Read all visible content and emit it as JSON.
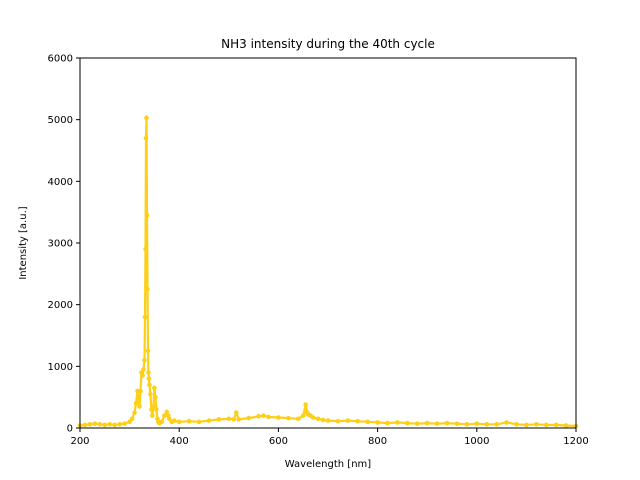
{
  "chart_data": {
    "type": "line",
    "title": "NH3 intensity during the 40th cycle",
    "xlabel": "Wavelength [nm]",
    "ylabel": "Intensity [a.u.]",
    "xlim": [
      200,
      1200
    ],
    "ylim": [
      0,
      6000
    ],
    "xticks": [
      200,
      400,
      600,
      800,
      1000,
      1200
    ],
    "yticks": [
      0,
      1000,
      2000,
      3000,
      4000,
      5000,
      6000
    ],
    "grid": false,
    "marker": "circle",
    "series": [
      {
        "color": "#fdd017",
        "x": [
          200,
          210,
          220,
          230,
          240,
          250,
          260,
          270,
          280,
          290,
          300,
          305,
          310,
          313,
          316,
          318,
          320,
          322,
          324,
          326,
          328,
          330,
          331,
          332,
          333,
          334,
          335,
          336,
          337,
          338,
          339,
          340,
          342,
          344,
          346,
          348,
          350,
          352,
          354,
          356,
          358,
          360,
          365,
          370,
          375,
          378,
          380,
          385,
          390,
          400,
          420,
          440,
          460,
          480,
          500,
          510,
          515,
          520,
          540,
          560,
          570,
          580,
          600,
          620,
          640,
          650,
          655,
          658,
          660,
          665,
          670,
          680,
          690,
          700,
          720,
          740,
          760,
          780,
          800,
          820,
          840,
          860,
          880,
          900,
          920,
          940,
          960,
          980,
          1000,
          1020,
          1040,
          1060,
          1080,
          1100,
          1120,
          1140,
          1160,
          1180,
          1200
        ],
        "y": [
          40,
          50,
          60,
          70,
          60,
          50,
          60,
          50,
          60,
          70,
          100,
          150,
          250,
          400,
          600,
          450,
          350,
          600,
          900,
          850,
          950,
          1100,
          1800,
          2900,
          4700,
          5030,
          3450,
          2250,
          1250,
          900,
          800,
          700,
          550,
          300,
          200,
          350,
          650,
          500,
          300,
          150,
          100,
          80,
          100,
          200,
          260,
          200,
          150,
          100,
          120,
          100,
          110,
          100,
          120,
          140,
          150,
          140,
          250,
          140,
          160,
          190,
          200,
          180,
          170,
          160,
          150,
          200,
          380,
          250,
          220,
          200,
          170,
          150,
          130,
          120,
          110,
          120,
          110,
          100,
          90,
          80,
          90,
          80,
          70,
          80,
          70,
          80,
          70,
          60,
          70,
          60,
          60,
          90,
          60,
          50,
          60,
          50,
          50,
          40,
          30
        ]
      }
    ]
  }
}
